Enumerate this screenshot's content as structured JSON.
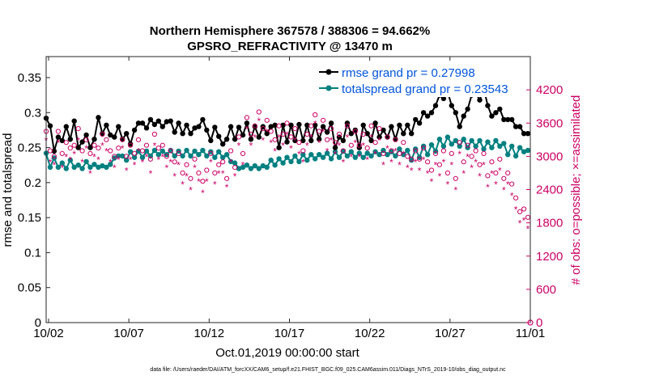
{
  "chart_data": {
    "type": "line",
    "title": "Northern Hemisphere 367578 / 388306 = 94.662%",
    "subtitle": "GPSRO_REFRACTIVITY @ 13470 m",
    "xlabel": "Oct.01,2019 00:00:00 start",
    "ylabel": "rmse and totalspread",
    "y2label": "# of obs: o=possible; ×=assimilated",
    "footnote": "data file: /Users/raeder/DAI/ATM_forcXX/CAM6_setup/f.e21.FHIST_BGC.f09_025.CAM6assim.011/Diags_NTrS_2019-10/obs_diag_output.nc",
    "xlim": [
      0.85,
      31.0
    ],
    "ylim": [
      0,
      0.38
    ],
    "y2lim": [
      0,
      4800
    ],
    "x_ticks": [
      1.0,
      6.0,
      11.0,
      16.0,
      21.0,
      26.0,
      31.0
    ],
    "x_tick_labels": [
      "10/02",
      "10/07",
      "10/12",
      "10/17",
      "10/22",
      "10/27",
      "11/01"
    ],
    "y_ticks": [
      0,
      0.05,
      0.1,
      0.15,
      0.2,
      0.25,
      0.3,
      0.35
    ],
    "y_tick_labels": [
      "0",
      "0.05",
      "0.1",
      "0.15",
      "0.2",
      "0.25",
      "0.3",
      "0.35"
    ],
    "y2_ticks": [
      0,
      600,
      1200,
      1800,
      2400,
      3000,
      3600,
      4200
    ],
    "y2_tick_labels": [
      "0",
      "600",
      "1200",
      "1800",
      "2400",
      "3000",
      "3600",
      "4200"
    ],
    "legend_position": "top-right",
    "colors": {
      "rmse": "#000000",
      "spread": "#008080",
      "obs": "#cc0066"
    },
    "series": [
      {
        "name": "rmse grand pr = 0.27998",
        "axis": "left",
        "x": [
          0.85,
          1.1,
          1.35,
          1.6,
          1.85,
          2.1,
          2.35,
          2.6,
          2.85,
          3.1,
          3.35,
          3.6,
          3.85,
          4.1,
          4.35,
          4.6,
          4.85,
          5.1,
          5.35,
          5.6,
          5.85,
          6.1,
          6.35,
          6.6,
          6.85,
          7.1,
          7.35,
          7.6,
          7.85,
          8.1,
          8.35,
          8.6,
          8.85,
          9.1,
          9.35,
          9.6,
          9.85,
          10.1,
          10.35,
          10.6,
          10.85,
          11.1,
          11.35,
          11.6,
          11.85,
          12.1,
          12.35,
          12.6,
          12.85,
          13.1,
          13.35,
          13.6,
          13.85,
          14.1,
          14.35,
          14.6,
          14.85,
          15.1,
          15.35,
          15.6,
          15.85,
          16.1,
          16.35,
          16.6,
          16.85,
          17.1,
          17.35,
          17.6,
          17.85,
          18.1,
          18.35,
          18.6,
          18.85,
          19.1,
          19.35,
          19.6,
          19.85,
          20.1,
          20.35,
          20.6,
          20.85,
          21.1,
          21.35,
          21.6,
          21.85,
          22.1,
          22.35,
          22.6,
          22.85,
          23.1,
          23.35,
          23.6,
          23.85,
          24.1,
          24.35,
          24.6,
          24.85,
          25.1,
          25.35,
          25.6,
          25.85,
          26.1,
          26.35,
          26.6,
          26.85,
          27.1,
          27.35,
          27.6,
          27.85,
          28.1,
          28.35,
          28.6,
          28.85,
          29.1,
          29.35,
          29.6,
          29.85,
          30.1,
          30.35,
          30.6,
          30.85
        ],
        "values": [
          0.292,
          0.281,
          0.245,
          0.265,
          0.26,
          0.28,
          0.262,
          0.288,
          0.25,
          0.258,
          0.268,
          0.25,
          0.262,
          0.293,
          0.27,
          0.282,
          0.268,
          0.265,
          0.28,
          0.262,
          0.27,
          0.255,
          0.275,
          0.285,
          0.285,
          0.278,
          0.29,
          0.283,
          0.288,
          0.28,
          0.287,
          0.288,
          0.272,
          0.285,
          0.27,
          0.282,
          0.27,
          0.278,
          0.28,
          0.29,
          0.275,
          0.26,
          0.279,
          0.266,
          0.255,
          0.262,
          0.28,
          0.262,
          0.279,
          0.268,
          0.285,
          0.262,
          0.28,
          0.265,
          0.28,
          0.27,
          0.28,
          0.282,
          0.25,
          0.282,
          0.258,
          0.282,
          0.26,
          0.283,
          0.26,
          0.282,
          0.26,
          0.282,
          0.262,
          0.28,
          0.272,
          0.285,
          0.25,
          0.265,
          0.26,
          0.285,
          0.27,
          0.275,
          0.25,
          0.282,
          0.27,
          0.26,
          0.285,
          0.265,
          0.275,
          0.265,
          0.28,
          0.262,
          0.282,
          0.27,
          0.282,
          0.27,
          0.29,
          0.285,
          0.3,
          0.295,
          0.3,
          0.31,
          0.325,
          0.32,
          0.33,
          0.31,
          0.3,
          0.28,
          0.295,
          0.305,
          0.325,
          0.328,
          0.318,
          0.335,
          0.31,
          0.295,
          0.3,
          0.305,
          0.29,
          0.29,
          0.29,
          0.28,
          0.28,
          0.27,
          0.27
        ]
      },
      {
        "name": "totalspread grand pr = 0.23543",
        "axis": "left",
        "x": [
          0.85,
          1.1,
          1.35,
          1.6,
          1.85,
          2.1,
          2.35,
          2.6,
          2.85,
          3.1,
          3.35,
          3.6,
          3.85,
          4.1,
          4.35,
          4.6,
          4.85,
          5.1,
          5.35,
          5.6,
          5.85,
          6.1,
          6.35,
          6.6,
          6.85,
          7.1,
          7.35,
          7.6,
          7.85,
          8.1,
          8.35,
          8.6,
          8.85,
          9.1,
          9.35,
          9.6,
          9.85,
          10.1,
          10.35,
          10.6,
          10.85,
          11.1,
          11.35,
          11.6,
          11.85,
          12.1,
          12.35,
          12.6,
          12.85,
          13.1,
          13.35,
          13.6,
          13.85,
          14.1,
          14.35,
          14.6,
          14.85,
          15.1,
          15.35,
          15.6,
          15.85,
          16.1,
          16.35,
          16.6,
          16.85,
          17.1,
          17.35,
          17.6,
          17.85,
          18.1,
          18.35,
          18.6,
          18.85,
          19.1,
          19.35,
          19.6,
          19.85,
          20.1,
          20.35,
          20.6,
          20.85,
          21.1,
          21.35,
          21.6,
          21.85,
          22.1,
          22.35,
          22.6,
          22.85,
          23.1,
          23.35,
          23.6,
          23.85,
          24.1,
          24.35,
          24.6,
          24.85,
          25.1,
          25.35,
          25.6,
          25.85,
          26.1,
          26.35,
          26.6,
          26.85,
          27.1,
          27.35,
          27.6,
          27.85,
          28.1,
          28.35,
          28.6,
          28.85,
          29.1,
          29.35,
          29.6,
          29.85,
          30.1,
          30.35,
          30.6,
          30.85
        ],
        "values": [
          0.242,
          0.222,
          0.235,
          0.222,
          0.228,
          0.22,
          0.232,
          0.222,
          0.225,
          0.22,
          0.23,
          0.222,
          0.226,
          0.222,
          0.224,
          0.222,
          0.226,
          0.235,
          0.238,
          0.238,
          0.232,
          0.244,
          0.236,
          0.245,
          0.236,
          0.245,
          0.238,
          0.246,
          0.24,
          0.245,
          0.24,
          0.246,
          0.238,
          0.245,
          0.238,
          0.246,
          0.238,
          0.245,
          0.24,
          0.246,
          0.238,
          0.244,
          0.236,
          0.244,
          0.236,
          0.24,
          0.23,
          0.228,
          0.22,
          0.222,
          0.225,
          0.22,
          0.224,
          0.22,
          0.224,
          0.222,
          0.232,
          0.225,
          0.234,
          0.228,
          0.236,
          0.23,
          0.238,
          0.23,
          0.24,
          0.232,
          0.24,
          0.234,
          0.24,
          0.236,
          0.242,
          0.234,
          0.244,
          0.236,
          0.245,
          0.238,
          0.244,
          0.236,
          0.242,
          0.236,
          0.242,
          0.238,
          0.244,
          0.24,
          0.246,
          0.24,
          0.244,
          0.238,
          0.248,
          0.24,
          0.246,
          0.232,
          0.248,
          0.236,
          0.252,
          0.24,
          0.254,
          0.245,
          0.262,
          0.252,
          0.265,
          0.255,
          0.26,
          0.252,
          0.262,
          0.25,
          0.26,
          0.252,
          0.26,
          0.248,
          0.258,
          0.25,
          0.26,
          0.252,
          0.256,
          0.24,
          0.252,
          0.238,
          0.25,
          0.244,
          0.246
        ]
      },
      {
        "name": "obs possible",
        "axis": "right",
        "marker": "circle",
        "x": [
          0.85,
          1.1,
          1.35,
          1.6,
          1.85,
          2.1,
          2.35,
          2.6,
          2.85,
          3.1,
          3.35,
          3.6,
          3.85,
          4.1,
          4.35,
          4.6,
          4.85,
          5.1,
          5.35,
          5.6,
          5.85,
          6.1,
          6.35,
          6.6,
          6.85,
          7.1,
          7.35,
          7.6,
          7.85,
          8.1,
          8.35,
          8.6,
          8.85,
          9.1,
          9.35,
          9.6,
          9.85,
          10.1,
          10.35,
          10.6,
          10.85,
          11.1,
          11.35,
          11.6,
          11.85,
          12.1,
          12.35,
          12.6,
          12.85,
          13.1,
          13.35,
          13.6,
          13.85,
          14.1,
          14.35,
          14.6,
          14.85,
          15.1,
          15.35,
          15.6,
          15.85,
          16.1,
          16.35,
          16.6,
          16.85,
          17.1,
          17.35,
          17.6,
          17.85,
          18.1,
          18.35,
          18.6,
          18.85,
          19.1,
          19.35,
          19.6,
          19.85,
          20.1,
          20.35,
          20.6,
          20.85,
          21.1,
          21.35,
          21.6,
          21.85,
          22.1,
          22.35,
          22.6,
          22.85,
          23.1,
          23.35,
          23.6,
          23.85,
          24.1,
          24.35,
          24.6,
          24.85,
          25.1,
          25.35,
          25.6,
          25.85,
          26.1,
          26.35,
          26.6,
          26.85,
          27.1,
          27.35,
          27.6,
          27.85,
          28.1,
          28.35,
          28.6,
          28.85,
          29.1,
          29.35,
          29.6,
          29.85,
          30.1,
          30.35,
          30.6,
          30.85
        ],
        "values": [
          3450,
          3100,
          3000,
          3450,
          3050,
          3250,
          3150,
          3200,
          3500,
          3100,
          3300,
          3050,
          3200,
          3150,
          3400,
          3300,
          3100,
          3000,
          3150,
          3300,
          3000,
          3200,
          3050,
          3300,
          3100,
          3200,
          2950,
          3400,
          3150,
          3200,
          3000,
          3100,
          2900,
          3050,
          2700,
          2850,
          2600,
          2950,
          2700,
          2550,
          2750,
          3050,
          2700,
          2850,
          2900,
          2600,
          3100,
          2800,
          3350,
          3050,
          3700,
          3400,
          3550,
          3800,
          3500,
          3650,
          3450,
          3300,
          3550,
          3400,
          3600,
          3350,
          3500,
          3250,
          3100,
          3400,
          3550,
          3750,
          3450,
          3650,
          3300,
          3500,
          3250,
          3400,
          3100,
          3550,
          3200,
          3450,
          3200,
          3400,
          3150,
          3550,
          3250,
          3500,
          3050,
          3350,
          3100,
          3300,
          3050,
          3250,
          3000,
          2950,
          3100,
          2950,
          3150,
          2900,
          2750,
          3050,
          2850,
          3100,
          2700,
          3050,
          2600,
          3250,
          2900,
          3200,
          3000,
          3100,
          2850,
          3050,
          2650,
          2900,
          2700,
          2950,
          2600,
          2700,
          2500,
          2250,
          2000,
          2050,
          1900
        ]
      },
      {
        "name": "obs assimilated",
        "axis": "right",
        "marker": "star",
        "x": [
          0.85,
          1.1,
          1.35,
          1.6,
          1.85,
          2.1,
          2.35,
          2.6,
          2.85,
          3.1,
          3.35,
          3.6,
          3.85,
          4.1,
          4.35,
          4.6,
          4.85,
          5.1,
          5.35,
          5.6,
          5.85,
          6.1,
          6.35,
          6.6,
          6.85,
          7.1,
          7.35,
          7.6,
          7.85,
          8.1,
          8.35,
          8.6,
          8.85,
          9.1,
          9.35,
          9.6,
          9.85,
          10.1,
          10.35,
          10.6,
          10.85,
          11.1,
          11.35,
          11.6,
          11.85,
          12.1,
          12.35,
          12.6,
          12.85,
          13.1,
          13.35,
          13.6,
          13.85,
          14.1,
          14.35,
          14.6,
          14.85,
          15.1,
          15.35,
          15.6,
          15.85,
          16.1,
          16.35,
          16.6,
          16.85,
          17.1,
          17.35,
          17.6,
          17.85,
          18.1,
          18.35,
          18.6,
          18.85,
          19.1,
          19.35,
          19.6,
          19.85,
          20.1,
          20.35,
          20.6,
          20.85,
          21.1,
          21.35,
          21.6,
          21.85,
          22.1,
          22.35,
          22.6,
          22.85,
          23.1,
          23.35,
          23.6,
          23.85,
          24.1,
          24.35,
          24.6,
          24.85,
          25.1,
          25.35,
          25.6,
          25.85,
          26.1,
          26.35,
          26.6,
          26.85,
          27.1,
          27.35,
          27.6,
          27.85,
          28.1,
          28.35,
          28.6,
          28.85,
          29.1,
          29.35,
          29.6,
          29.85,
          30.1,
          30.35,
          30.6,
          30.85
        ],
        "values": [
          3300,
          2900,
          2850,
          3250,
          2800,
          3000,
          2950,
          3050,
          3300,
          2900,
          3150,
          2700,
          3000,
          2950,
          3200,
          3100,
          2900,
          2800,
          2950,
          3150,
          2750,
          2950,
          2850,
          3100,
          2900,
          3000,
          2700,
          3200,
          2950,
          3000,
          2800,
          2900,
          2650,
          2850,
          2500,
          2650,
          2400,
          2800,
          2550,
          2350,
          2550,
          2900,
          2500,
          2700,
          2700,
          2450,
          2900,
          2650,
          3200,
          2850,
          3500,
          3200,
          3350,
          3650,
          3300,
          3450,
          3250,
          3100,
          3350,
          3200,
          3400,
          3150,
          3300,
          3050,
          2900,
          3200,
          3350,
          3600,
          3250,
          3450,
          3100,
          3300,
          3050,
          3200,
          2900,
          3350,
          3000,
          3250,
          3000,
          3200,
          2950,
          3350,
          3050,
          3300,
          2850,
          3150,
          2900,
          3100,
          2850,
          3050,
          2800,
          2750,
          2900,
          2750,
          2950,
          2700,
          2550,
          2850,
          2650,
          2900,
          2500,
          2850,
          2400,
          3050,
          2700,
          3000,
          2800,
          2900,
          2650,
          2850,
          2450,
          2700,
          2500,
          2750,
          2400,
          2500,
          2300,
          2050,
          1800,
          1850,
          1700
        ]
      }
    ]
  }
}
